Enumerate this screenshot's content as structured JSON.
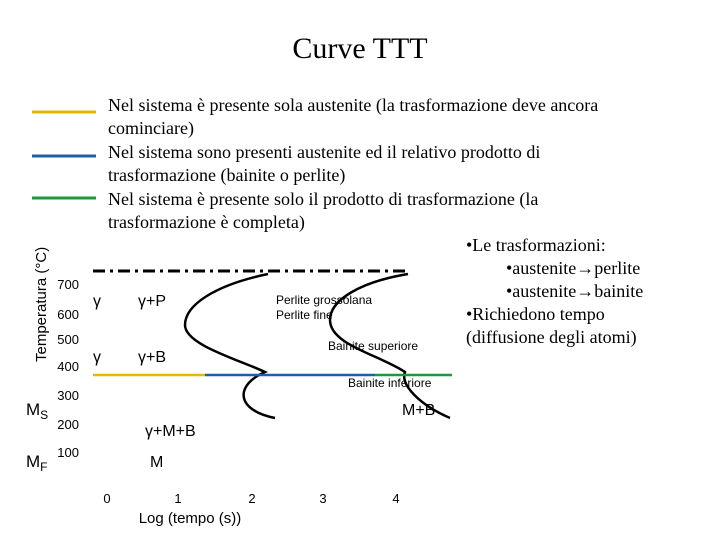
{
  "header": {
    "title": "Curve TTT"
  },
  "legend": [
    {
      "color": "#e6b800",
      "text_lines": [
        "Nel sistema è presente sola austenite (la trasformazione deve ancora",
        "cominciare)"
      ]
    },
    {
      "color": "#1f5fa8",
      "text_lines": [
        "Nel sistema sono presenti austenite ed il relativo prodotto di",
        "trasformazione (bainite o perlite)"
      ]
    },
    {
      "color": "#1a9a3a",
      "text_lines": [
        "Nel sistema è presente solo il prodotto di trasformazione (la",
        "trasformazione è completa)"
      ]
    }
  ],
  "notes": [
    "•Le trasformazioni:",
    "•austenite→perlite",
    "•austenite→bainite",
    "•Richiedono tempo",
    "(diffusione degli atomi)"
  ],
  "diagram": {
    "y_axis_label": "Temperatura (°C)",
    "x_axis_label": "Log (tempo (s))",
    "y_ticks": [
      "700",
      "600",
      "500",
      "400",
      "300",
      "200",
      "100"
    ],
    "x_ticks": [
      "0",
      "1",
      "2",
      "3",
      "4"
    ],
    "ms": {
      "main": "M",
      "sub": "S"
    },
    "mf": {
      "main": "M",
      "sub": "F"
    },
    "regions": [
      "γ",
      "γ+P",
      "γ",
      "γ+B",
      "γ+M+B",
      "M",
      "M+B"
    ],
    "annotations": [
      "Perlite grossolana",
      "Perlite fine",
      "Bainite superiore",
      "Bainite inferiore"
    ]
  }
}
